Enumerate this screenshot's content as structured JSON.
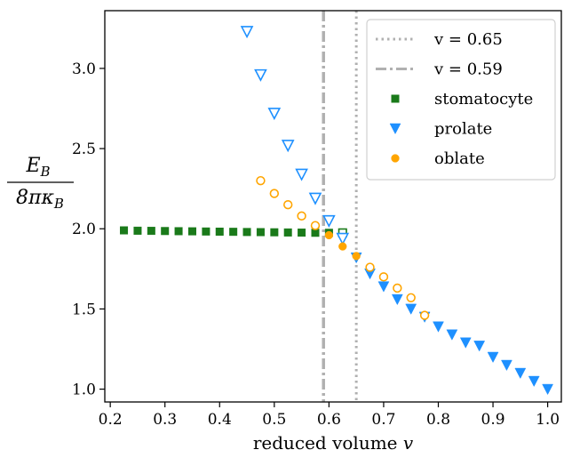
{
  "chart_data": {
    "type": "scatter",
    "xlabel": "reduced volume v",
    "ylabel": {
      "numerator": "E",
      "numerator_sub": "B",
      "denominator": "8πκ",
      "denominator_sub": "B"
    },
    "xlim": [
      0.19,
      1.025
    ],
    "ylim": [
      0.92,
      3.36
    ],
    "x_ticks": [
      0.2,
      0.3,
      0.4,
      0.5,
      0.6,
      0.7,
      0.8,
      0.9,
      1.0
    ],
    "x_tick_labels": [
      "0.2",
      "0.3",
      "0.4",
      "0.5",
      "0.6",
      "0.7",
      "0.8",
      "0.9",
      "1.0"
    ],
    "y_ticks": [
      1.0,
      1.5,
      2.0,
      2.5,
      3.0
    ],
    "y_tick_labels": [
      "1.0",
      "1.5",
      "2.0",
      "2.5",
      "3.0"
    ],
    "grid": false,
    "legend_position": "top-right",
    "vlines": [
      {
        "x": 0.65,
        "label": "v = 0.65",
        "style": "dotted",
        "color": "#b0b0b0"
      },
      {
        "x": 0.59,
        "label": "v = 0.59",
        "style": "dashdot",
        "color": "#b0b0b0"
      }
    ],
    "series": [
      {
        "name": "stomatocyte",
        "marker": "square",
        "color": "#1a7a1a",
        "points": [
          {
            "x": 0.225,
            "y": 1.99,
            "filled": true
          },
          {
            "x": 0.25,
            "y": 1.988,
            "filled": true
          },
          {
            "x": 0.275,
            "y": 1.987,
            "filled": true
          },
          {
            "x": 0.3,
            "y": 1.986,
            "filled": true
          },
          {
            "x": 0.325,
            "y": 1.985,
            "filled": true
          },
          {
            "x": 0.35,
            "y": 1.984,
            "filled": true
          },
          {
            "x": 0.375,
            "y": 1.983,
            "filled": true
          },
          {
            "x": 0.4,
            "y": 1.982,
            "filled": true
          },
          {
            "x": 0.425,
            "y": 1.981,
            "filled": true
          },
          {
            "x": 0.45,
            "y": 1.98,
            "filled": true
          },
          {
            "x": 0.475,
            "y": 1.979,
            "filled": true
          },
          {
            "x": 0.5,
            "y": 1.978,
            "filled": true
          },
          {
            "x": 0.525,
            "y": 1.977,
            "filled": true
          },
          {
            "x": 0.55,
            "y": 1.976,
            "filled": true
          },
          {
            "x": 0.575,
            "y": 1.975,
            "filled": true
          },
          {
            "x": 0.6,
            "y": 1.975,
            "filled": true
          },
          {
            "x": 0.625,
            "y": 1.975,
            "filled": false
          }
        ]
      },
      {
        "name": "prolate",
        "marker": "triangle-down",
        "color": "#1e90ff",
        "points": [
          {
            "x": 0.45,
            "y": 3.23,
            "filled": false
          },
          {
            "x": 0.475,
            "y": 2.96,
            "filled": false
          },
          {
            "x": 0.5,
            "y": 2.72,
            "filled": false
          },
          {
            "x": 0.525,
            "y": 2.52,
            "filled": false
          },
          {
            "x": 0.55,
            "y": 2.34,
            "filled": false
          },
          {
            "x": 0.575,
            "y": 2.19,
            "filled": false
          },
          {
            "x": 0.6,
            "y": 2.05,
            "filled": false
          },
          {
            "x": 0.625,
            "y": 1.94,
            "filled": false
          },
          {
            "x": 0.65,
            "y": 1.82,
            "filled": true
          },
          {
            "x": 0.675,
            "y": 1.72,
            "filled": true
          },
          {
            "x": 0.7,
            "y": 1.64,
            "filled": true
          },
          {
            "x": 0.725,
            "y": 1.56,
            "filled": true
          },
          {
            "x": 0.75,
            "y": 1.5,
            "filled": true
          },
          {
            "x": 0.775,
            "y": 1.45,
            "filled": true
          },
          {
            "x": 0.8,
            "y": 1.39,
            "filled": true
          },
          {
            "x": 0.825,
            "y": 1.34,
            "filled": true
          },
          {
            "x": 0.85,
            "y": 1.29,
            "filled": true
          },
          {
            "x": 0.875,
            "y": 1.27,
            "filled": true
          },
          {
            "x": 0.9,
            "y": 1.2,
            "filled": true
          },
          {
            "x": 0.925,
            "y": 1.15,
            "filled": true
          },
          {
            "x": 0.95,
            "y": 1.1,
            "filled": true
          },
          {
            "x": 0.975,
            "y": 1.05,
            "filled": true
          },
          {
            "x": 1.0,
            "y": 1.0,
            "filled": true
          }
        ]
      },
      {
        "name": "oblate",
        "marker": "circle",
        "color": "#ffa500",
        "points": [
          {
            "x": 0.475,
            "y": 2.3,
            "filled": false
          },
          {
            "x": 0.5,
            "y": 2.22,
            "filled": false
          },
          {
            "x": 0.525,
            "y": 2.15,
            "filled": false
          },
          {
            "x": 0.55,
            "y": 2.08,
            "filled": false
          },
          {
            "x": 0.575,
            "y": 2.02,
            "filled": false
          },
          {
            "x": 0.6,
            "y": 1.96,
            "filled": true
          },
          {
            "x": 0.625,
            "y": 1.89,
            "filled": true
          },
          {
            "x": 0.65,
            "y": 1.83,
            "filled": true
          },
          {
            "x": 0.675,
            "y": 1.76,
            "filled": false
          },
          {
            "x": 0.7,
            "y": 1.7,
            "filled": false
          },
          {
            "x": 0.725,
            "y": 1.63,
            "filled": false
          },
          {
            "x": 0.75,
            "y": 1.57,
            "filled": false
          },
          {
            "x": 0.775,
            "y": 1.46,
            "filled": false
          }
        ]
      }
    ]
  }
}
